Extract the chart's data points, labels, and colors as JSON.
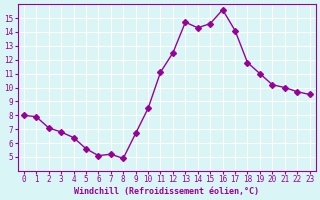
{
  "x": [
    0,
    1,
    2,
    3,
    4,
    5,
    6,
    7,
    8,
    9,
    10,
    11,
    12,
    13,
    14,
    15,
    16,
    17,
    18,
    19,
    20,
    21,
    22,
    23
  ],
  "y": [
    8.0,
    7.9,
    7.1,
    6.8,
    6.4,
    5.6,
    5.1,
    5.2,
    4.9,
    6.7,
    8.5,
    11.1,
    12.5,
    14.7,
    14.3,
    14.6,
    15.6,
    14.1,
    11.8,
    11.0,
    10.2,
    10.0,
    9.7,
    9.5
  ],
  "line_color": "#990099",
  "marker": "D",
  "marker_size": 3,
  "bg_color": "#d9f5f5",
  "grid_color": "#ffffff",
  "xlabel": "Windchill (Refroidissement éolien,°C)",
  "xlabel_color": "#990099",
  "tick_color": "#990099",
  "ylim": [
    4,
    16
  ],
  "xlim": [
    -0.5,
    23.5
  ],
  "yticks": [
    5,
    6,
    7,
    8,
    9,
    10,
    11,
    12,
    13,
    14,
    15
  ],
  "xticks": [
    0,
    1,
    2,
    3,
    4,
    5,
    6,
    7,
    8,
    9,
    10,
    11,
    12,
    13,
    14,
    15,
    16,
    17,
    18,
    19,
    20,
    21,
    22,
    23
  ],
  "spine_color": "#990099"
}
